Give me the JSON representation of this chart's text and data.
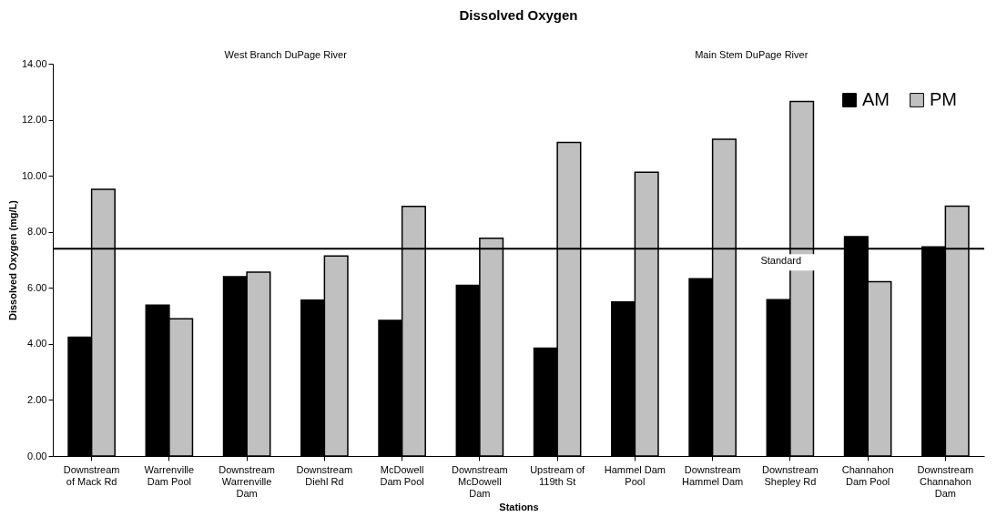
{
  "chart_data": {
    "type": "bar",
    "title": "Dissolved Oxygen",
    "xlabel": "Stations",
    "ylabel": "Dissolved Oxygen (mg/L)",
    "categories": [
      "Downstream of Mack Rd",
      "Warrenville Dam Pool",
      "Downstream Warrenville Dam",
      "Downstream Diehl Rd",
      "McDowell Dam Pool",
      "Downstream McDowell Dam",
      "Upstream of 119th St",
      "Hammel Dam Pool",
      "Downstream Hammel Dam",
      "Downstream Shepley Rd",
      "Channahon Dam Pool",
      "Downstream Channahon Dam"
    ],
    "series": [
      {
        "name": "AM",
        "color": "#000000",
        "values": [
          4.24,
          5.38,
          6.4,
          5.56,
          4.84,
          6.09,
          3.85,
          5.5,
          6.33,
          5.58,
          7.83,
          7.46
        ]
      },
      {
        "name": "PM",
        "color": "#c0c0c0",
        "values": [
          9.52,
          4.9,
          6.56,
          7.14,
          8.91,
          7.77,
          11.19,
          10.13,
          11.3,
          12.65,
          6.22,
          8.92
        ]
      }
    ],
    "ylim": [
      0,
      14
    ],
    "yticks": [
      {
        "value": 0,
        "label": "0.00"
      },
      {
        "value": 2,
        "label": "2.00"
      },
      {
        "value": 4,
        "label": "4.00"
      },
      {
        "value": 6,
        "label": "6.00"
      },
      {
        "value": 8,
        "label": "8.00"
      },
      {
        "value": 10,
        "label": "10.00"
      },
      {
        "value": 12,
        "label": "12.00"
      },
      {
        "value": 14,
        "label": "14.00"
      }
    ],
    "ref_lines": [
      {
        "axis": "y",
        "value": 7.4,
        "label": "Standard",
        "color": "#000000"
      }
    ],
    "annotations": [
      "West Branch DuPage River",
      "Main Stem DuPage River"
    ],
    "grid": false,
    "legend": "top right"
  }
}
